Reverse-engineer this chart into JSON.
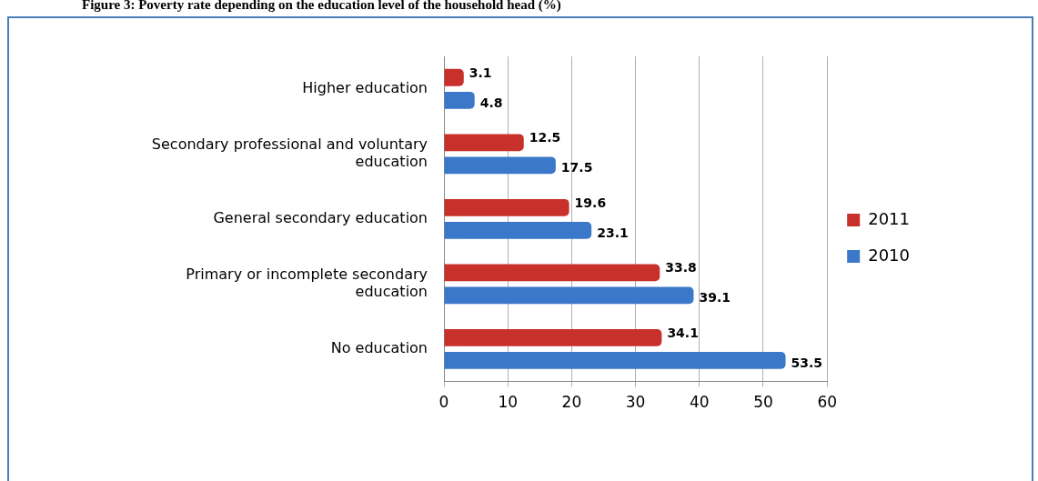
{
  "chart_data": {
    "type": "bar",
    "orientation": "horizontal",
    "title": "Figure 3: Poverty rate depending on the education level of the household head (%)",
    "categories": [
      "Higher education",
      "Secondary professional and voluntary education",
      "General secondary education",
      "Primary or incomplete secondary education",
      "No education"
    ],
    "series": [
      {
        "name": "2011",
        "color": "#c8312b",
        "values": [
          3.1,
          12.5,
          19.6,
          33.8,
          34.1
        ]
      },
      {
        "name": "2010",
        "color": "#3b78c9",
        "values": [
          4.8,
          17.5,
          23.1,
          39.1,
          53.5
        ]
      }
    ],
    "xlim": [
      0,
      60
    ],
    "xticks": [
      0,
      10,
      20,
      30,
      40,
      50,
      60
    ],
    "grid": "x",
    "legend": "right",
    "data_labels": true
  }
}
